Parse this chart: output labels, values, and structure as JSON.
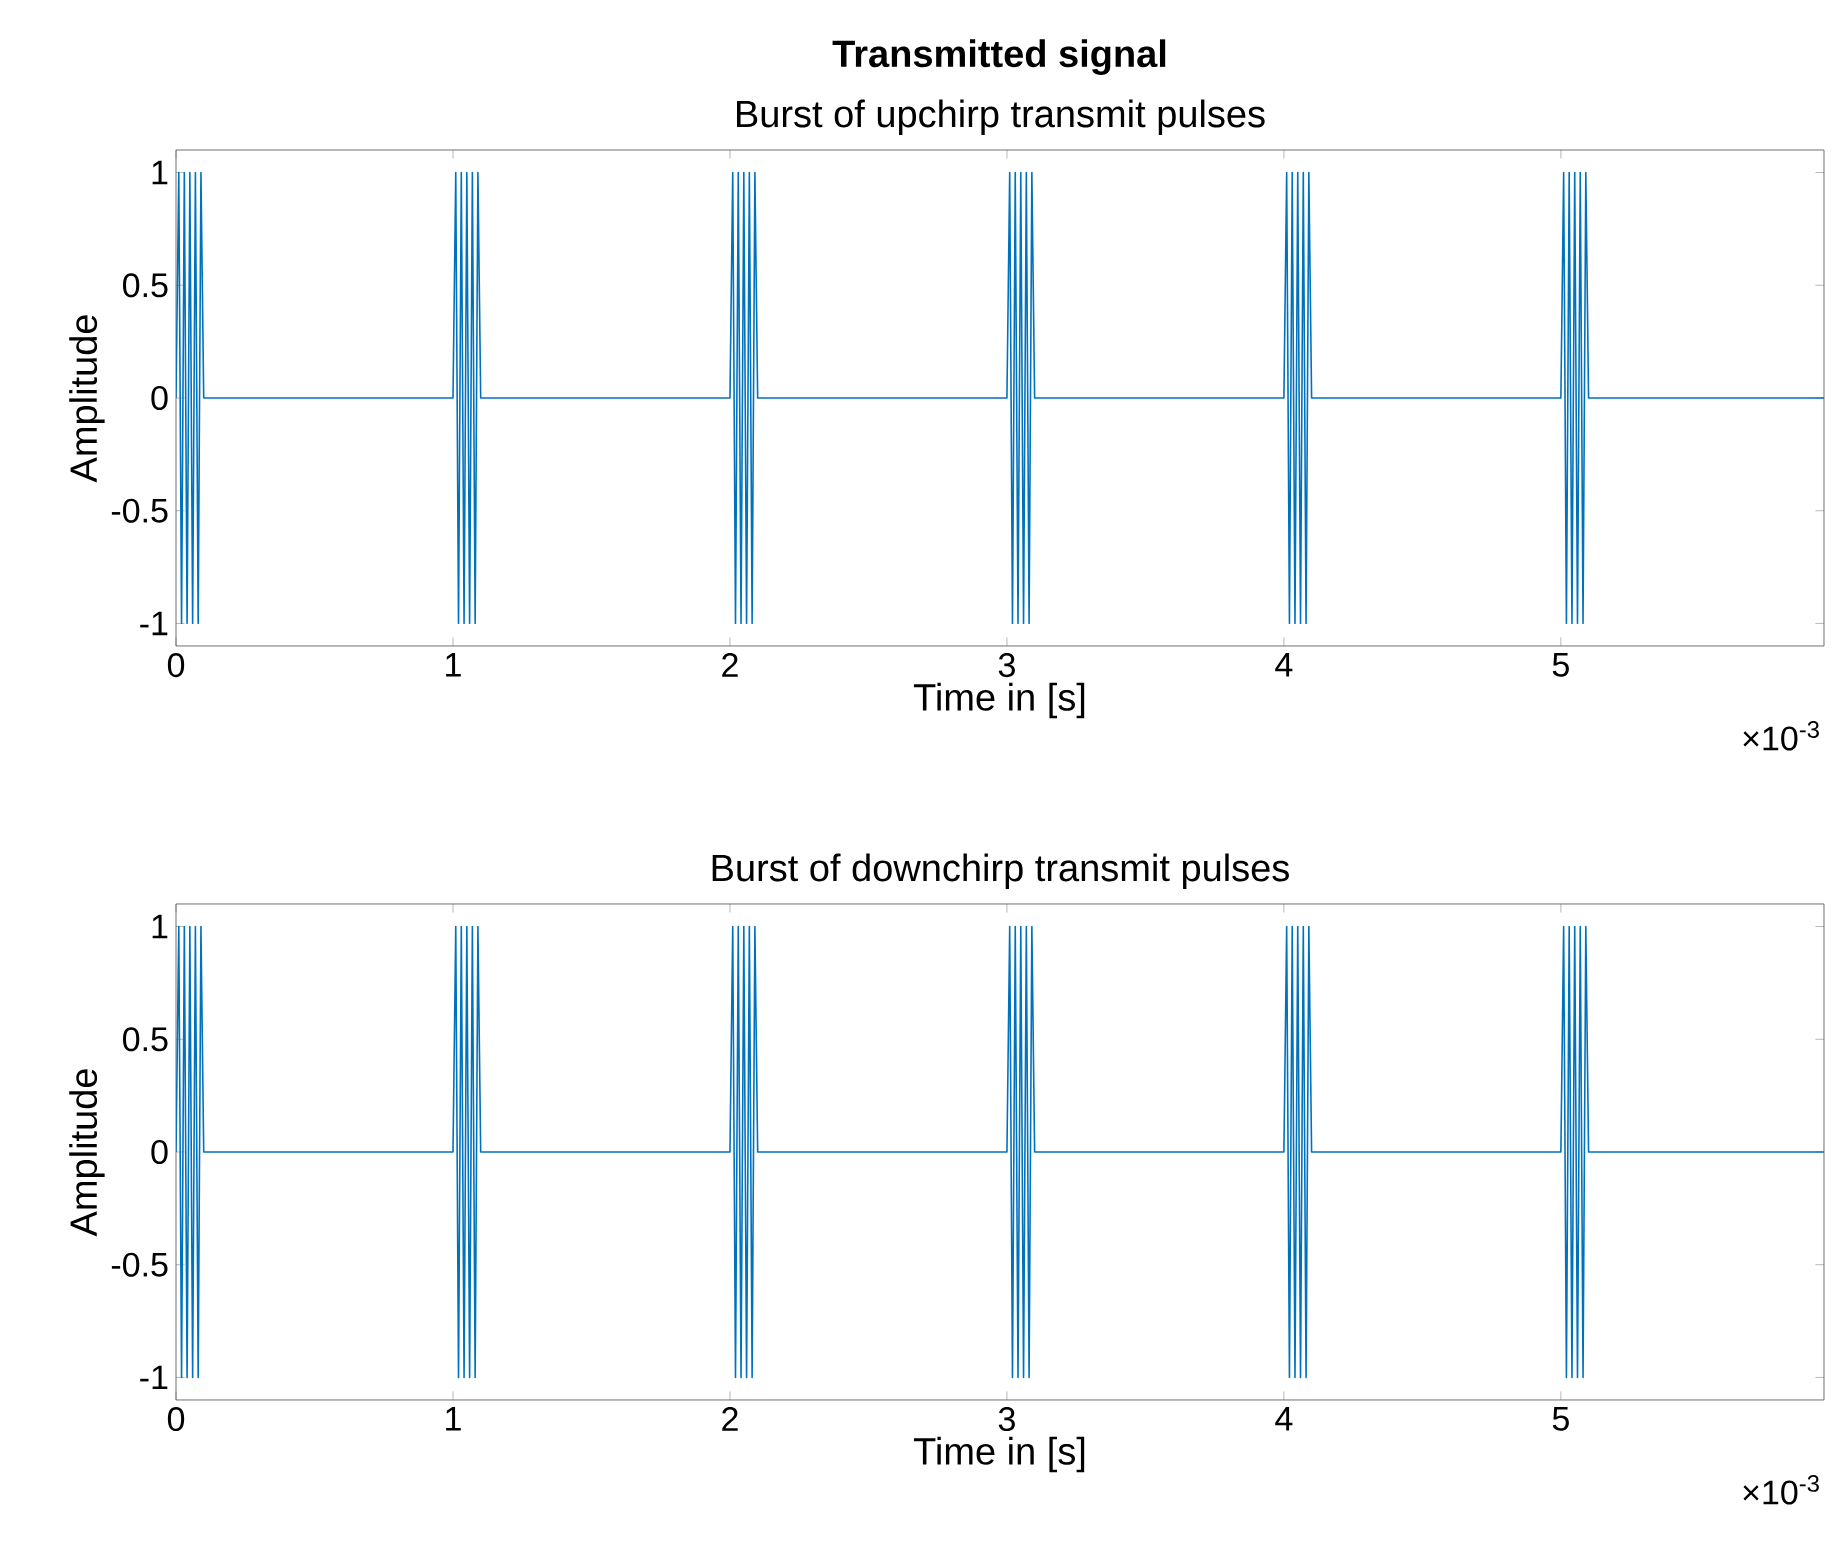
{
  "chart_data": [
    {
      "type": "line",
      "title": "Transmitted signal",
      "subtitle": "Burst of upchirp transmit pulses",
      "xlabel": "Time in [s]",
      "ylabel": "Amplitude",
      "color": "#0072bd",
      "x": [
        0,
        0.01,
        0.02,
        0.03,
        0.04,
        0.05,
        0.06,
        0.07,
        0.08,
        0.09,
        0.1,
        1,
        1.01,
        1.02,
        1.03,
        1.04,
        1.05,
        1.06,
        1.07,
        1.08,
        1.09,
        1.1,
        2,
        2.01,
        2.02,
        2.03,
        2.04,
        2.05,
        2.06,
        2.07,
        2.08,
        2.09,
        2.1,
        3,
        3.01,
        3.02,
        3.03,
        3.04,
        3.05,
        3.06,
        3.07,
        3.08,
        3.09,
        3.1,
        4,
        4.01,
        4.02,
        4.03,
        4.04,
        4.05,
        4.06,
        4.07,
        4.08,
        4.09,
        4.1,
        5,
        5.01,
        5.02,
        5.03,
        5.04,
        5.05,
        5.06,
        5.07,
        5.08,
        5.09,
        5.1,
        5.95
      ],
      "values": [
        0,
        1,
        -1,
        1,
        -1,
        1,
        -1,
        1,
        -1,
        1,
        0,
        0,
        1,
        -1,
        1,
        -1,
        1,
        -1,
        1,
        -1,
        1,
        0,
        0,
        1,
        -1,
        1,
        -1,
        1,
        -1,
        1,
        -1,
        1,
        0,
        0,
        1,
        -1,
        1,
        -1,
        1,
        -1,
        1,
        -1,
        1,
        0,
        0,
        1,
        -1,
        1,
        -1,
        1,
        -1,
        1,
        -1,
        1,
        0,
        0,
        1,
        -1,
        1,
        -1,
        1,
        -1,
        1,
        -1,
        1,
        0,
        0
      ],
      "xlim": [
        0,
        5.95
      ],
      "ylim": [
        -1.1,
        1.1
      ],
      "xticks": [
        0,
        1,
        2,
        3,
        4,
        5
      ],
      "yticks": [
        -1,
        -0.5,
        0,
        0.5,
        1
      ],
      "annotations": [
        "×10$^{-3}$"
      ]
    },
    {
      "type": "line",
      "title": "Burst of downchirp transmit pulses",
      "xlabel": "Time in [s]",
      "ylabel": "Amplitude",
      "color": "#0072bd",
      "x": [
        0,
        0.01,
        0.02,
        0.03,
        0.04,
        0.05,
        0.06,
        0.07,
        0.08,
        0.09,
        0.1,
        1,
        1.01,
        1.02,
        1.03,
        1.04,
        1.05,
        1.06,
        1.07,
        1.08,
        1.09,
        1.1,
        2,
        2.01,
        2.02,
        2.03,
        2.04,
        2.05,
        2.06,
        2.07,
        2.08,
        2.09,
        2.1,
        3,
        3.01,
        3.02,
        3.03,
        3.04,
        3.05,
        3.06,
        3.07,
        3.08,
        3.09,
        3.1,
        4,
        4.01,
        4.02,
        4.03,
        4.04,
        4.05,
        4.06,
        4.07,
        4.08,
        4.09,
        4.1,
        5,
        5.01,
        5.02,
        5.03,
        5.04,
        5.05,
        5.06,
        5.07,
        5.08,
        5.09,
        5.1,
        5.95
      ],
      "values": [
        0,
        1,
        -1,
        1,
        -1,
        1,
        -1,
        1,
        -1,
        1,
        0,
        0,
        1,
        -1,
        1,
        -1,
        1,
        -1,
        1,
        -1,
        1,
        0,
        0,
        1,
        -1,
        1,
        -1,
        1,
        -1,
        1,
        -1,
        1,
        0,
        0,
        1,
        -1,
        1,
        -1,
        1,
        -1,
        1,
        -1,
        1,
        0,
        0,
        1,
        -1,
        1,
        -1,
        1,
        -1,
        1,
        -1,
        1,
        0,
        0,
        1,
        -1,
        1,
        -1,
        1,
        -1,
        1,
        -1,
        1,
        0,
        0
      ],
      "xlim": [
        0,
        5.95
      ],
      "ylim": [
        -1.1,
        1.1
      ],
      "xticks": [
        0,
        1,
        2,
        3,
        4,
        5
      ],
      "yticks": [
        -1,
        -0.5,
        0,
        0.5,
        1
      ],
      "annotations": [
        "×10$^{-3}$"
      ]
    }
  ]
}
